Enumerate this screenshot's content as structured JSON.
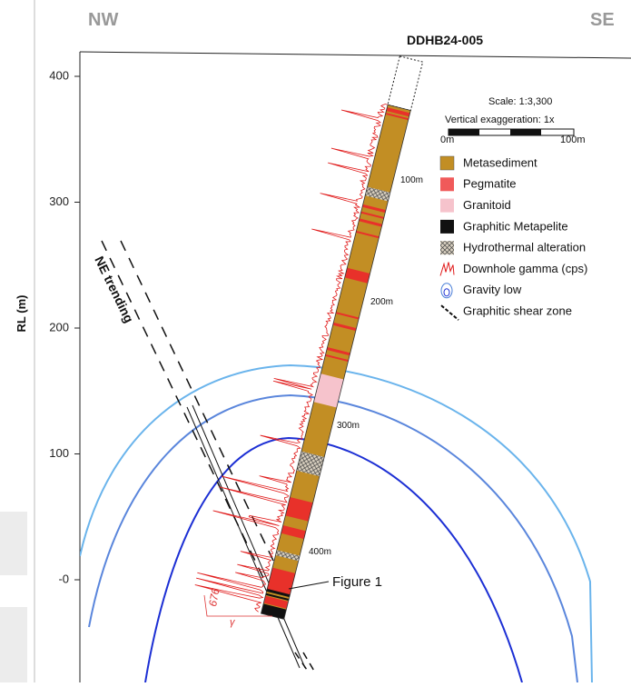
{
  "header": {
    "left": "NW",
    "right": "SE",
    "hole_id": "DDHB24-005"
  },
  "axis": {
    "label": "RL (m)",
    "ticks": [
      "400",
      "300",
      "200",
      "100",
      "-0"
    ]
  },
  "scale": {
    "text": "Scale: 1:3,300",
    "exaggeration": "Vertical exaggeration: 1x",
    "bar_start": "0m",
    "bar_end": "100m"
  },
  "legend": [
    "Metasediment",
    "Pegmatite",
    "Granitoid",
    "Graphitic Metapelite",
    "Hydrothermal alteration",
    "Downhole gamma (cps)",
    "Gravity low",
    "Graphitic shear zone"
  ],
  "depth_labels": [
    "100m",
    "200m",
    "300m",
    "400m"
  ],
  "annotations": {
    "trend": "NE trending",
    "figure": "Figure 1",
    "gamma_max": "676",
    "gamma_axis": "γ"
  }
}
